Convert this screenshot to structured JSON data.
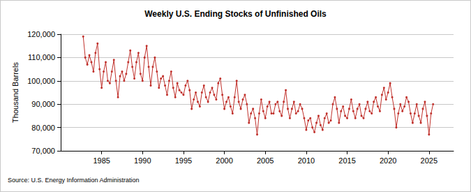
{
  "chart_data": {
    "type": "line",
    "title": "Weekly U.S. Ending Stocks of Unfinished Oils",
    "y_label": "Thousand Barrels",
    "annotation": "Source: U.S. Energy Information Administration",
    "color": "#c0302b",
    "marker": "circle",
    "grid": true,
    "xlim": [
      1980,
      2028
    ],
    "xticks": [
      1985,
      1990,
      1995,
      2000,
      2005,
      2010,
      2015,
      2020,
      2025
    ],
    "ylim": [
      70000,
      120000
    ],
    "yticks": [
      {
        "value": 70000,
        "label": "70,000"
      },
      {
        "value": 80000,
        "label": "80,000"
      },
      {
        "value": 90000,
        "label": "90,000"
      },
      {
        "value": 100000,
        "label": "100,000"
      },
      {
        "value": 110000,
        "label": "110,000"
      },
      {
        "value": 120000,
        "label": "120,000"
      }
    ],
    "x": [
      1982.75,
      1983,
      1983.25,
      1983.5,
      1983.75,
      1984,
      1984.25,
      1984.5,
      1984.75,
      1985,
      1985.25,
      1985.5,
      1985.75,
      1986,
      1986.25,
      1986.5,
      1986.75,
      1987,
      1987.25,
      1987.5,
      1987.75,
      1988,
      1988.25,
      1988.5,
      1988.75,
      1989,
      1989.25,
      1989.5,
      1989.75,
      1990,
      1990.25,
      1990.5,
      1990.75,
      1991,
      1991.25,
      1991.5,
      1991.75,
      1992,
      1992.25,
      1992.5,
      1992.75,
      1993,
      1993.25,
      1993.5,
      1993.75,
      1994,
      1994.25,
      1994.5,
      1994.75,
      1995,
      1995.25,
      1995.5,
      1995.75,
      1996,
      1996.25,
      1996.5,
      1996.75,
      1997,
      1997.25,
      1997.5,
      1997.75,
      1998,
      1998.25,
      1998.5,
      1998.75,
      1999,
      1999.25,
      1999.5,
      1999.75,
      2000,
      2000.25,
      2000.5,
      2000.75,
      2001,
      2001.25,
      2001.5,
      2001.75,
      2002,
      2002.25,
      2002.5,
      2002.75,
      2003,
      2003.25,
      2003.5,
      2003.75,
      2004,
      2004.25,
      2004.5,
      2004.75,
      2005,
      2005.25,
      2005.5,
      2005.75,
      2006,
      2006.25,
      2006.5,
      2006.75,
      2007,
      2007.25,
      2007.5,
      2007.75,
      2008,
      2008.25,
      2008.5,
      2008.75,
      2009,
      2009.25,
      2009.5,
      2009.75,
      2010,
      2010.25,
      2010.5,
      2010.75,
      2011,
      2011.25,
      2011.5,
      2011.75,
      2012,
      2012.25,
      2012.5,
      2012.75,
      2013,
      2013.25,
      2013.5,
      2013.75,
      2014,
      2014.25,
      2014.5,
      2014.75,
      2015,
      2015.25,
      2015.5,
      2015.75,
      2016,
      2016.25,
      2016.5,
      2016.75,
      2017,
      2017.25,
      2017.5,
      2017.75,
      2018,
      2018.25,
      2018.5,
      2018.75,
      2019,
      2019.25,
      2019.5,
      2019.75,
      2020,
      2020.25,
      2020.5,
      2020.75,
      2021,
      2021.25,
      2021.5,
      2021.75,
      2022,
      2022.25,
      2022.5,
      2022.75,
      2023,
      2023.25,
      2023.5,
      2023.75,
      2024,
      2024.25,
      2024.5,
      2024.75,
      2025,
      2025.25,
      2025.5
    ],
    "values": [
      119000,
      110000,
      107000,
      111000,
      108000,
      104000,
      112000,
      116000,
      105000,
      97000,
      104000,
      108000,
      100000,
      99000,
      104000,
      109000,
      100000,
      93000,
      102000,
      104000,
      100000,
      103000,
      108000,
      113000,
      106000,
      101000,
      108000,
      112000,
      103000,
      100000,
      110000,
      115000,
      106000,
      98000,
      106000,
      110000,
      104000,
      97000,
      101000,
      102000,
      98000,
      94000,
      100000,
      104000,
      97000,
      93000,
      99000,
      96000,
      95000,
      94000,
      98000,
      100000,
      96000,
      88000,
      92000,
      95000,
      91000,
      89000,
      95000,
      98000,
      93000,
      91000,
      95000,
      97000,
      94000,
      92000,
      99000,
      101000,
      94000,
      88000,
      91000,
      93000,
      89000,
      86000,
      93000,
      100000,
      91000,
      88000,
      92000,
      94000,
      90000,
      82000,
      86000,
      88000,
      84000,
      77000,
      86000,
      92000,
      87000,
      84000,
      89000,
      91000,
      86000,
      86000,
      90000,
      91000,
      87000,
      85000,
      91000,
      96000,
      88000,
      84000,
      88000,
      91000,
      86000,
      87000,
      90000,
      88000,
      84000,
      79000,
      83000,
      84000,
      80000,
      78000,
      82000,
      85000,
      81000,
      79000,
      84000,
      86000,
      82000,
      83000,
      90000,
      93000,
      88000,
      82000,
      87000,
      89000,
      85000,
      84000,
      88000,
      92000,
      87000,
      84000,
      88000,
      90000,
      85000,
      84000,
      88000,
      91000,
      87000,
      86000,
      91000,
      93000,
      89000,
      87000,
      94000,
      97000,
      92000,
      95000,
      99000,
      93000,
      88000,
      80000,
      86000,
      90000,
      87000,
      89000,
      93000,
      91000,
      86000,
      82000,
      86000,
      90000,
      85000,
      82000,
      88000,
      91000,
      85000,
      77000,
      86000,
      90000
    ]
  }
}
